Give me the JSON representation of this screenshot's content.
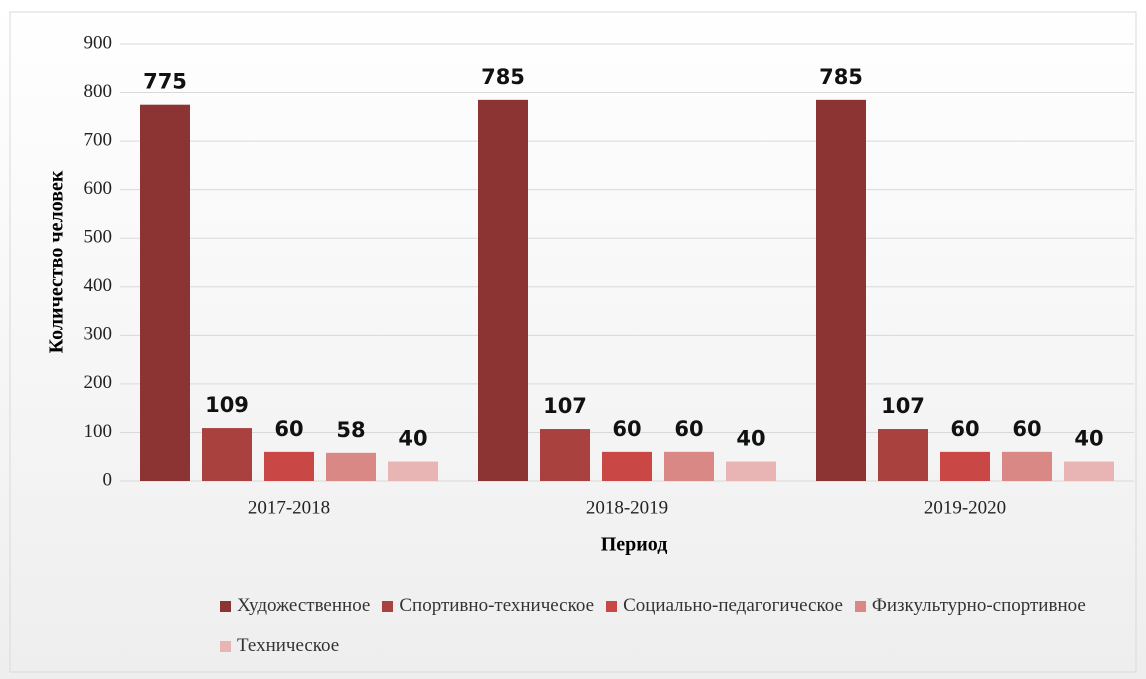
{
  "chart_data": {
    "type": "bar",
    "categories": [
      "2017-2018",
      "2018-2019",
      "2019-2020"
    ],
    "series": [
      {
        "name": "Художественное",
        "color": "#8c3434",
        "values": [
          775,
          785,
          785
        ]
      },
      {
        "name": "Спортивно-техническое",
        "color": "#a9413f",
        "values": [
          109,
          107,
          107
        ]
      },
      {
        "name": "Социально-педагогическое",
        "color": "#c94845",
        "values": [
          60,
          60,
          60
        ]
      },
      {
        "name": "Физкультурно-спортивное",
        "color": "#d98886",
        "values": [
          58,
          60,
          60
        ]
      },
      {
        "name": "Техническое",
        "color": "#e8b5b4",
        "values": [
          40,
          40,
          40
        ]
      }
    ],
    "ylim": [
      0,
      900
    ],
    "yticks": [
      0,
      100,
      200,
      300,
      400,
      500,
      600,
      700,
      800,
      900
    ],
    "xlabel": "Период",
    "ylabel": "Количество человек",
    "grid": true,
    "legend": "bottom"
  }
}
